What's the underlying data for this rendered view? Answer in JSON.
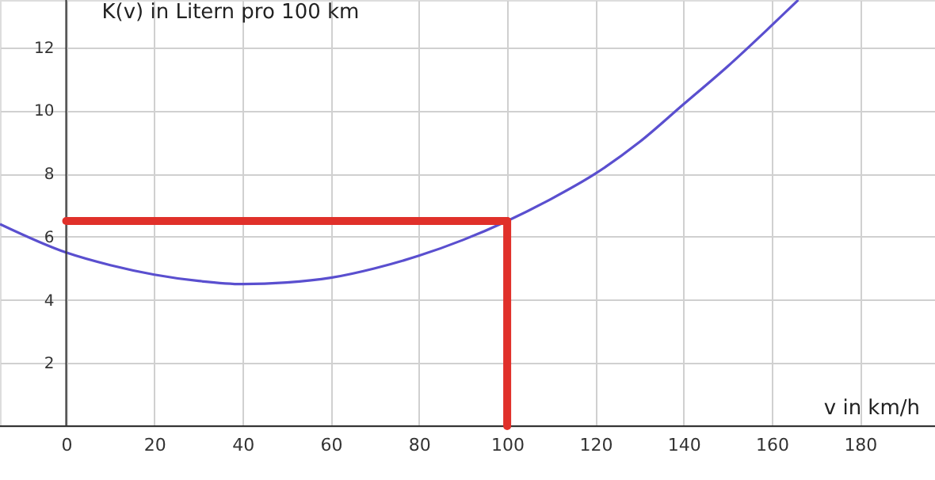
{
  "chart_data": {
    "type": "line",
    "xlabel": "v in km/h",
    "ylabel": "K(v) in Litern pro 100 km",
    "x": [
      -15,
      0,
      10,
      20,
      30,
      40,
      50,
      60,
      70,
      80,
      90,
      100,
      110,
      120,
      130,
      140,
      150,
      160,
      166
    ],
    "series": [
      {
        "color": "#5a4fcf",
        "values": [
          6.4,
          5.5,
          5.1,
          4.8,
          4.6,
          4.5,
          4.55,
          4.7,
          5.0,
          5.4,
          5.9,
          6.5,
          7.2,
          8.0,
          9.0,
          10.2,
          11.4,
          12.7,
          13.5
        ]
      }
    ],
    "xlim": [
      -15,
      197
    ],
    "ylim": [
      0,
      13.5
    ],
    "xticks": [
      0,
      20,
      40,
      60,
      80,
      100,
      120,
      140,
      160,
      180
    ],
    "yticks": [
      2,
      4,
      6,
      8,
      10,
      12
    ],
    "ref_lines": [
      {
        "axis": "x",
        "value": 100,
        "color": "#e0302a"
      },
      {
        "axis": "y",
        "value": 6.5,
        "color": "#e0302a"
      }
    ],
    "grid": true,
    "line_style": "solid",
    "marker": "none"
  }
}
